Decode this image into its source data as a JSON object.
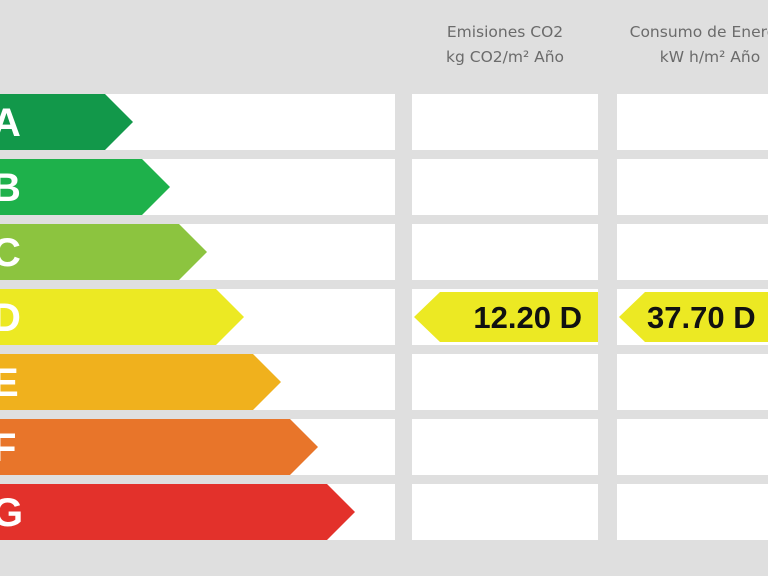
{
  "headers": [
    {
      "line1": "Emisiones CO2",
      "line2": "kg CO2/m² Año"
    },
    {
      "line1": "Consumo de Energía",
      "line2": "kW h/m² Año"
    }
  ],
  "ratings": [
    {
      "letter": "A",
      "color": "#12984a"
    },
    {
      "letter": "B",
      "color": "#1eb14b"
    },
    {
      "letter": "C",
      "color": "#8cc43f"
    },
    {
      "letter": "D",
      "color": "#ece923"
    },
    {
      "letter": "E",
      "color": "#f0b11d"
    },
    {
      "letter": "F",
      "color": "#e8752a"
    },
    {
      "letter": "G",
      "color": "#e3312b"
    }
  ],
  "indicators": [
    {
      "column": "Emisiones CO2",
      "value": "12.20 D",
      "rating": "D",
      "color": "#ece923"
    },
    {
      "column": "Consumo de Energía",
      "value": "37.70 D",
      "rating": "D",
      "color": "#ece923"
    }
  ]
}
